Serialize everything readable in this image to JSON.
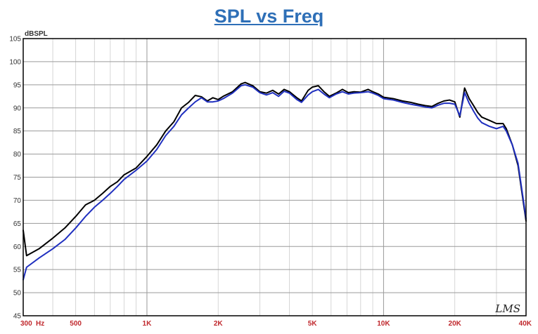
{
  "chart_data": {
    "type": "line",
    "title": "SPL vs Freq",
    "ylabel": "dBSPL",
    "xlabel": "",
    "x_scale": "log",
    "xlim": [
      300,
      40000
    ],
    "ylim": [
      45,
      105
    ],
    "grid": true,
    "y_ticks": [
      45,
      50,
      55,
      60,
      65,
      70,
      75,
      80,
      85,
      90,
      95,
      100,
      105
    ],
    "x_tick_labels": [
      {
        "value": 300,
        "label": "300"
      },
      {
        "value": 500,
        "label": "500"
      },
      {
        "value": 1000,
        "label": "1K"
      },
      {
        "value": 2000,
        "label": "2K"
      },
      {
        "value": 5000,
        "label": "5K"
      },
      {
        "value": 10000,
        "label": "10K"
      },
      {
        "value": 20000,
        "label": "20K"
      },
      {
        "value": 40000,
        "label": "40K"
      }
    ],
    "x_unit": "Hz",
    "watermark": "LMS",
    "series": [
      {
        "color": "#000000",
        "points": [
          [
            300,
            63.5
          ],
          [
            310,
            58
          ],
          [
            350,
            59.5
          ],
          [
            400,
            61.8
          ],
          [
            450,
            64
          ],
          [
            500,
            66.5
          ],
          [
            550,
            69
          ],
          [
            600,
            70
          ],
          [
            650,
            71.5
          ],
          [
            700,
            73
          ],
          [
            750,
            74
          ],
          [
            800,
            75.5
          ],
          [
            900,
            77
          ],
          [
            1000,
            79.5
          ],
          [
            1100,
            82
          ],
          [
            1200,
            85
          ],
          [
            1300,
            87
          ],
          [
            1400,
            90
          ],
          [
            1500,
            91.2
          ],
          [
            1600,
            92.7
          ],
          [
            1700,
            92.4
          ],
          [
            1800,
            91.5
          ],
          [
            1900,
            92.2
          ],
          [
            2000,
            91.8
          ],
          [
            2100,
            92.5
          ],
          [
            2300,
            93.5
          ],
          [
            2500,
            95.2
          ],
          [
            2600,
            95.5
          ],
          [
            2800,
            94.8
          ],
          [
            3000,
            93.5
          ],
          [
            3200,
            93.2
          ],
          [
            3400,
            93.8
          ],
          [
            3600,
            93
          ],
          [
            3800,
            94
          ],
          [
            4000,
            93.5
          ],
          [
            4300,
            92.2
          ],
          [
            4500,
            91.5
          ],
          [
            4800,
            93.8
          ],
          [
            5000,
            94.5
          ],
          [
            5300,
            94.8
          ],
          [
            5600,
            93.5
          ],
          [
            5900,
            92.5
          ],
          [
            6300,
            93.2
          ],
          [
            6700,
            94
          ],
          [
            7100,
            93.3
          ],
          [
            7500,
            93.5
          ],
          [
            8000,
            93.4
          ],
          [
            8600,
            94
          ],
          [
            9000,
            93.5
          ],
          [
            9500,
            93
          ],
          [
            10000,
            92.3
          ],
          [
            11000,
            92
          ],
          [
            12000,
            91.5
          ],
          [
            13000,
            91.2
          ],
          [
            14000,
            90.8
          ],
          [
            15000,
            90.5
          ],
          [
            16000,
            90.3
          ],
          [
            17000,
            91
          ],
          [
            18000,
            91.5
          ],
          [
            19000,
            91.7
          ],
          [
            20000,
            91.3
          ],
          [
            21000,
            88
          ],
          [
            22000,
            94.3
          ],
          [
            23000,
            92
          ],
          [
            24000,
            90.5
          ],
          [
            25000,
            89
          ],
          [
            26000,
            88
          ],
          [
            28000,
            87.3
          ],
          [
            30000,
            86.6
          ],
          [
            32000,
            86.6
          ],
          [
            33000,
            85.5
          ],
          [
            35000,
            82
          ],
          [
            37000,
            77.5
          ],
          [
            40000,
            65.5
          ]
        ]
      },
      {
        "color": "#1f2fbf",
        "points": [
          [
            300,
            52.8
          ],
          [
            310,
            55.5
          ],
          [
            350,
            57.5
          ],
          [
            400,
            59.5
          ],
          [
            450,
            61.5
          ],
          [
            500,
            64
          ],
          [
            550,
            66.5
          ],
          [
            600,
            68.5
          ],
          [
            650,
            70
          ],
          [
            700,
            71.5
          ],
          [
            750,
            73
          ],
          [
            800,
            74.5
          ],
          [
            900,
            76.5
          ],
          [
            1000,
            78.5
          ],
          [
            1100,
            81
          ],
          [
            1200,
            84
          ],
          [
            1300,
            86
          ],
          [
            1400,
            88.5
          ],
          [
            1500,
            90
          ],
          [
            1600,
            91.3
          ],
          [
            1700,
            92.2
          ],
          [
            1800,
            91.3
          ],
          [
            1900,
            91.3
          ],
          [
            2000,
            91.5
          ],
          [
            2100,
            92
          ],
          [
            2300,
            93.2
          ],
          [
            2500,
            94.8
          ],
          [
            2600,
            95
          ],
          [
            2800,
            94.5
          ],
          [
            3000,
            93.3
          ],
          [
            3200,
            92.8
          ],
          [
            3400,
            93.3
          ],
          [
            3600,
            92.5
          ],
          [
            3800,
            93.6
          ],
          [
            4000,
            93.2
          ],
          [
            4300,
            91.8
          ],
          [
            4500,
            91.2
          ],
          [
            4800,
            92.8
          ],
          [
            5000,
            93.5
          ],
          [
            5300,
            94
          ],
          [
            5600,
            93
          ],
          [
            5900,
            92.2
          ],
          [
            6300,
            93
          ],
          [
            6700,
            93.5
          ],
          [
            7100,
            93
          ],
          [
            7500,
            93.2
          ],
          [
            8000,
            93.3
          ],
          [
            8600,
            93.5
          ],
          [
            9000,
            93.2
          ],
          [
            9500,
            92.7
          ],
          [
            10000,
            92
          ],
          [
            11000,
            91.7
          ],
          [
            12000,
            91.2
          ],
          [
            13000,
            90.8
          ],
          [
            14000,
            90.5
          ],
          [
            15000,
            90.2
          ],
          [
            16000,
            90
          ],
          [
            17000,
            90.6
          ],
          [
            18000,
            91
          ],
          [
            19000,
            91
          ],
          [
            20000,
            90.8
          ],
          [
            21000,
            88.3
          ],
          [
            22000,
            93.3
          ],
          [
            23000,
            91
          ],
          [
            24000,
            89.3
          ],
          [
            25000,
            87.8
          ],
          [
            26000,
            86.8
          ],
          [
            28000,
            86
          ],
          [
            30000,
            85.5
          ],
          [
            32000,
            86
          ],
          [
            33000,
            85
          ],
          [
            35000,
            82
          ],
          [
            37000,
            78
          ],
          [
            40000,
            66
          ]
        ]
      }
    ]
  }
}
